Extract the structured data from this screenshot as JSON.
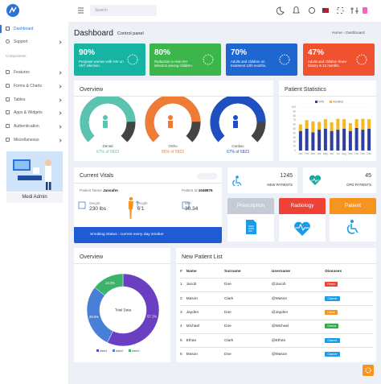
{
  "sidebar": {
    "menu": [
      "Dashboard",
      "Support"
    ],
    "section": "Components",
    "components": [
      "Features",
      "Forms & Charts",
      "Tables",
      "Apps & Widgets",
      "Authentication",
      "Miscellaneous"
    ],
    "brand": "Medi Admin"
  },
  "header": {
    "search": "Search",
    "title": "Dashboard",
    "subtitle": "Control panel",
    "breadcrumb": [
      "Home",
      "Dashboard"
    ]
  },
  "stats": [
    {
      "value": "90%",
      "text": "Pregnant women with HIV on ART infection."
    },
    {
      "value": "80%",
      "text": "Reduction in new HIV infection among children."
    },
    {
      "value": "70%",
      "text": "Adults and children on treatment 12th months."
    },
    {
      "value": "47%",
      "text": "Adults and children fewer history in 12 months."
    }
  ],
  "overview": {
    "title": "Overview",
    "gauges": [
      {
        "name": "Dental",
        "label": "67% of 5823"
      },
      {
        "name": "Ortho",
        "label": "85% of 5823"
      },
      {
        "name": "Cardiac",
        "label": "67% of 5823"
      }
    ]
  },
  "vitals": {
    "title": "Current Vitals",
    "patient_name_label": "Patient Name",
    "patient_name": "Jansahn",
    "patient_id_label": "Patient Id",
    "patient_id": "1548876",
    "weight_label": "Weight",
    "weight": "230 lbs",
    "height_label": "Height",
    "height": "6'1",
    "bmi_label": "BMI",
    "bmi": "30.34",
    "smoking": "Smoking Status : current every day smoker"
  },
  "counts": [
    {
      "value": "1245",
      "label": "NEW PATIENTS"
    },
    {
      "value": "45",
      "label": "OPD PATIENTS"
    }
  ],
  "tiles": [
    "Prescription",
    "Radiology",
    "Patient"
  ],
  "patient_list": {
    "title": "New Patient List",
    "columns": [
      "#",
      "Name",
      "Surname",
      "Username",
      "Diseases"
    ],
    "rows": [
      [
        "1",
        "Jacob",
        "Doe",
        "@Jacob",
        "Fever"
      ],
      [
        "2",
        "Mason",
        "Clark",
        "@Mason",
        "Cancer"
      ],
      [
        "3",
        "Jayden",
        "Doe",
        "@Jayden",
        "Lotus"
      ],
      [
        "4",
        "Michael",
        "Doe",
        "@Michael",
        "Dental"
      ],
      [
        "5",
        "Ethan",
        "Clark",
        "@Ethan",
        "Cancer"
      ],
      [
        "6",
        "Mason",
        "Doe",
        "@Mason",
        "Cancer"
      ]
    ]
  },
  "chart_data": [
    {
      "type": "bar",
      "title": "Patient Statistics",
      "stacked": true,
      "categories": [
        "Jan",
        "Feb",
        "Mar",
        "Apr",
        "May",
        "Jun",
        "Jul",
        "Aug",
        "Sep",
        "Oct",
        "Nov",
        "Dec"
      ],
      "series": [
        {
          "name": "OPD",
          "color": "#2f3f9e",
          "values": [
            45,
            50,
            42,
            48,
            50,
            45,
            48,
            50,
            45,
            52,
            48,
            50
          ]
        },
        {
          "name": "Admitted",
          "color": "#f6b822",
          "values": [
            15,
            20,
            25,
            18,
            22,
            20,
            25,
            22,
            18,
            20,
            25,
            22
          ]
        }
      ],
      "ylim": [
        0,
        100
      ],
      "yticks": [
        0,
        10,
        20,
        30,
        40,
        50,
        60,
        70,
        80,
        90,
        100
      ],
      "grid": true
    },
    {
      "type": "pie",
      "title": "Overview",
      "center_label": "Total Data",
      "categories": [
        "data1",
        "data2",
        "data3"
      ],
      "values": [
        57.1,
        28.6,
        14.3
      ],
      "value_labels": [
        "57.1%",
        "28.6%",
        "14.3%"
      ],
      "colors": [
        "#6a3fc1",
        "#4a7fd9",
        "#39b46a"
      ]
    }
  ]
}
